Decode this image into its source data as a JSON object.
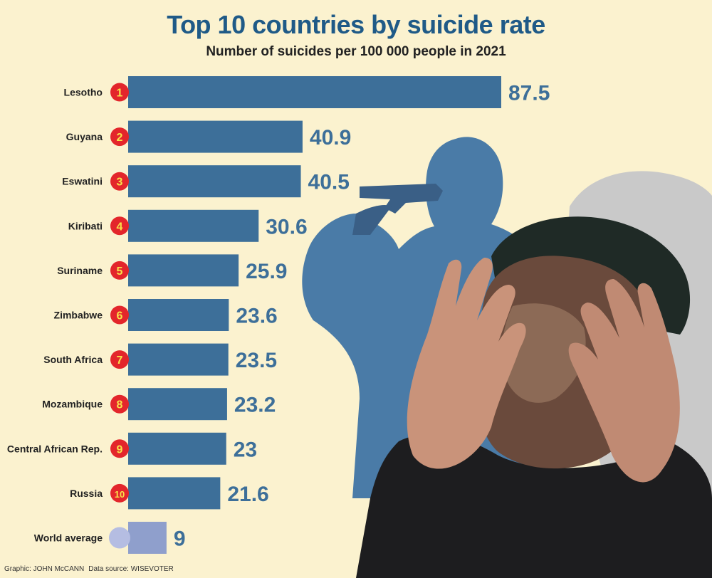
{
  "chart_data": {
    "type": "bar",
    "orientation": "horizontal",
    "title": "Top 10 countries by suicide rate",
    "subtitle": "Number of suicides per 100 000 people in 2021",
    "categories": [
      "Lesotho",
      "Guyana",
      "Eswatini",
      "Kiribati",
      "Suriname",
      "Zimbabwe",
      "South Africa",
      "Mozambique",
      "Central African Rep.",
      "Russia",
      "World average"
    ],
    "ranks": [
      "1",
      "2",
      "3",
      "4",
      "5",
      "6",
      "7",
      "8",
      "9",
      "10",
      ""
    ],
    "values": [
      87.5,
      40.9,
      40.5,
      30.6,
      25.9,
      23.6,
      23.5,
      23.2,
      23,
      21.6,
      9
    ],
    "value_labels": [
      "87.5",
      "40.9",
      "40.5",
      "30.6",
      "25.9",
      "23.6",
      "23.5",
      "23.2",
      "23",
      "21.6",
      "9"
    ],
    "xlim": [
      0,
      87.5
    ],
    "grid": false,
    "colors": {
      "bar": "#3d6f99",
      "world_bar": "#8f9fcc",
      "world_dot": "#b5bde2",
      "rank_badge": "#e3262b",
      "rank_text": "#f7e24a",
      "value_text": "#3d6f99"
    }
  },
  "credit": {
    "graphic": "Graphic: JOHN McCANN",
    "source": "Data source: WISEVOTER"
  }
}
